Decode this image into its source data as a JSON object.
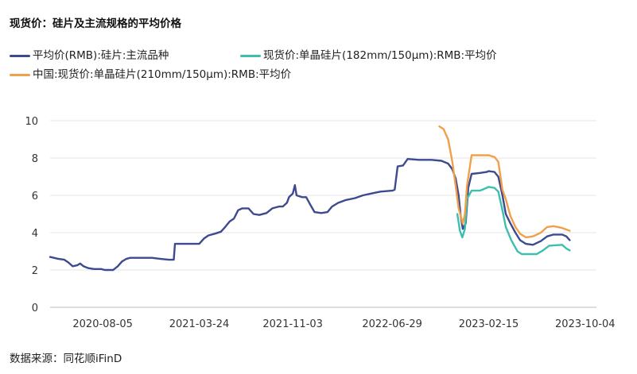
{
  "chart_data": {
    "type": "line",
    "title": "现货价：硅片及主流规格的平均价格",
    "source": "数据来源：同花顺iFinD",
    "xlabel": "",
    "ylabel": "",
    "ylim": [
      0,
      10
    ],
    "yticks": [
      "0",
      "2",
      "4",
      "6",
      "8",
      "10"
    ],
    "xlim": [
      "2020-04-01",
      "2023-10-31"
    ],
    "xticks": [
      "2020-08-05",
      "2021-03-24",
      "2021-11-03",
      "2022-06-29",
      "2023-02-15",
      "2023-10-04"
    ],
    "grid": true,
    "legend_position": "top",
    "series": [
      {
        "name": "平均价(RMB):硅片:主流品种",
        "color": "#3d4a8f",
        "points": [
          [
            "2020-04-01",
            2.7
          ],
          [
            "2020-04-20",
            2.6
          ],
          [
            "2020-05-05",
            2.55
          ],
          [
            "2020-05-15",
            2.4
          ],
          [
            "2020-05-25",
            2.2
          ],
          [
            "2020-06-05",
            2.25
          ],
          [
            "2020-06-12",
            2.35
          ],
          [
            "2020-06-20",
            2.2
          ],
          [
            "2020-07-01",
            2.1
          ],
          [
            "2020-07-15",
            2.05
          ],
          [
            "2020-08-01",
            2.05
          ],
          [
            "2020-08-10",
            2.0
          ],
          [
            "2020-08-20",
            2.0
          ],
          [
            "2020-08-30",
            2.0
          ],
          [
            "2020-09-10",
            2.2
          ],
          [
            "2020-09-20",
            2.45
          ],
          [
            "2020-10-01",
            2.6
          ],
          [
            "2020-10-10",
            2.65
          ],
          [
            "2020-11-01",
            2.65
          ],
          [
            "2020-12-01",
            2.65
          ],
          [
            "2020-12-20",
            2.6
          ],
          [
            "2021-01-10",
            2.55
          ],
          [
            "2021-01-22",
            2.55
          ],
          [
            "2021-01-25",
            3.4
          ],
          [
            "2021-02-10",
            3.4
          ],
          [
            "2021-03-01",
            3.4
          ],
          [
            "2021-03-24",
            3.4
          ],
          [
            "2021-04-05",
            3.7
          ],
          [
            "2021-04-15",
            3.85
          ],
          [
            "2021-05-01",
            3.95
          ],
          [
            "2021-05-15",
            4.05
          ],
          [
            "2021-05-25",
            4.3
          ],
          [
            "2021-06-05",
            4.6
          ],
          [
            "2021-06-15",
            4.75
          ],
          [
            "2021-06-25",
            5.2
          ],
          [
            "2021-07-05",
            5.3
          ],
          [
            "2021-07-20",
            5.3
          ],
          [
            "2021-08-01",
            5.0
          ],
          [
            "2021-08-15",
            4.95
          ],
          [
            "2021-09-01",
            5.05
          ],
          [
            "2021-09-15",
            5.3
          ],
          [
            "2021-10-01",
            5.4
          ],
          [
            "2021-10-10",
            5.4
          ],
          [
            "2021-10-20",
            5.6
          ],
          [
            "2021-10-25",
            5.9
          ],
          [
            "2021-11-03",
            6.1
          ],
          [
            "2021-11-08",
            6.55
          ],
          [
            "2021-11-12",
            6.0
          ],
          [
            "2021-11-25",
            5.9
          ],
          [
            "2021-12-05",
            5.9
          ],
          [
            "2021-12-15",
            5.5
          ],
          [
            "2021-12-25",
            5.1
          ],
          [
            "2022-01-10",
            5.05
          ],
          [
            "2022-01-25",
            5.1
          ],
          [
            "2022-02-05",
            5.4
          ],
          [
            "2022-02-20",
            5.6
          ],
          [
            "2022-03-10",
            5.75
          ],
          [
            "2022-04-01",
            5.85
          ],
          [
            "2022-04-20",
            6.0
          ],
          [
            "2022-05-10",
            6.1
          ],
          [
            "2022-06-01",
            6.2
          ],
          [
            "2022-06-29",
            6.25
          ],
          [
            "2022-07-05",
            6.3
          ],
          [
            "2022-07-12",
            7.55
          ],
          [
            "2022-07-25",
            7.6
          ],
          [
            "2022-08-05",
            7.95
          ],
          [
            "2022-09-01",
            7.9
          ],
          [
            "2022-10-01",
            7.9
          ],
          [
            "2022-10-25",
            7.85
          ],
          [
            "2022-11-10",
            7.7
          ],
          [
            "2022-11-20",
            7.4
          ],
          [
            "2022-11-28",
            6.9
          ],
          [
            "2022-12-05",
            6.0
          ],
          [
            "2022-12-10",
            4.9
          ],
          [
            "2022-12-15",
            4.2
          ],
          [
            "2022-12-22",
            4.5
          ],
          [
            "2022-12-28",
            6.4
          ],
          [
            "2023-01-05",
            7.15
          ],
          [
            "2023-01-25",
            7.2
          ],
          [
            "2023-02-10",
            7.25
          ],
          [
            "2023-02-15",
            7.3
          ],
          [
            "2023-03-01",
            7.25
          ],
          [
            "2023-03-10",
            7.0
          ],
          [
            "2023-03-20",
            6.0
          ],
          [
            "2023-03-28",
            5.0
          ],
          [
            "2023-04-08",
            4.5
          ],
          [
            "2023-04-20",
            4.0
          ],
          [
            "2023-05-01",
            3.6
          ],
          [
            "2023-05-15",
            3.4
          ],
          [
            "2023-06-01",
            3.35
          ],
          [
            "2023-06-20",
            3.55
          ],
          [
            "2023-07-05",
            3.8
          ],
          [
            "2023-07-20",
            3.9
          ],
          [
            "2023-08-10",
            3.9
          ],
          [
            "2023-08-20",
            3.8
          ],
          [
            "2023-08-28",
            3.6
          ]
        ]
      },
      {
        "name": "现货价:单晶硅片(182mm/150μm):RMB:平均价",
        "color": "#3dbfae",
        "points": [
          [
            "2022-12-02",
            5.0
          ],
          [
            "2022-12-08",
            4.1
          ],
          [
            "2022-12-14",
            3.75
          ],
          [
            "2022-12-20",
            4.2
          ],
          [
            "2022-12-25",
            5.8
          ],
          [
            "2023-01-05",
            6.25
          ],
          [
            "2023-01-25",
            6.25
          ],
          [
            "2023-02-05",
            6.35
          ],
          [
            "2023-02-15",
            6.45
          ],
          [
            "2023-03-01",
            6.4
          ],
          [
            "2023-03-10",
            6.2
          ],
          [
            "2023-03-20",
            5.2
          ],
          [
            "2023-03-28",
            4.3
          ],
          [
            "2023-04-10",
            3.6
          ],
          [
            "2023-04-25",
            3.0
          ],
          [
            "2023-05-05",
            2.85
          ],
          [
            "2023-06-10",
            2.85
          ],
          [
            "2023-06-25",
            3.05
          ],
          [
            "2023-07-10",
            3.3
          ],
          [
            "2023-08-10",
            3.35
          ],
          [
            "2023-08-20",
            3.15
          ],
          [
            "2023-08-28",
            3.05
          ]
        ]
      },
      {
        "name": "中国:现货价:单晶硅片(210mm/150μm):RMB:平均价",
        "color": "#f0a04b",
        "points": [
          [
            "2022-10-20",
            9.7
          ],
          [
            "2022-10-30",
            9.55
          ],
          [
            "2022-11-10",
            9.0
          ],
          [
            "2022-11-20",
            7.8
          ],
          [
            "2022-11-28",
            6.5
          ],
          [
            "2022-12-05",
            5.3
          ],
          [
            "2022-12-10",
            4.9
          ],
          [
            "2022-12-15",
            4.5
          ],
          [
            "2022-12-20",
            5.0
          ],
          [
            "2022-12-25",
            6.5
          ],
          [
            "2023-01-05",
            8.15
          ],
          [
            "2023-01-25",
            8.15
          ],
          [
            "2023-02-15",
            8.15
          ],
          [
            "2023-03-01",
            8.05
          ],
          [
            "2023-03-10",
            7.8
          ],
          [
            "2023-03-20",
            6.3
          ],
          [
            "2023-03-28",
            5.8
          ],
          [
            "2023-04-08",
            4.9
          ],
          [
            "2023-04-20",
            4.3
          ],
          [
            "2023-05-01",
            3.95
          ],
          [
            "2023-05-15",
            3.75
          ],
          [
            "2023-06-01",
            3.8
          ],
          [
            "2023-06-20",
            4.0
          ],
          [
            "2023-07-05",
            4.3
          ],
          [
            "2023-07-20",
            4.35
          ],
          [
            "2023-08-10",
            4.25
          ],
          [
            "2023-08-28",
            4.1
          ]
        ]
      }
    ]
  }
}
